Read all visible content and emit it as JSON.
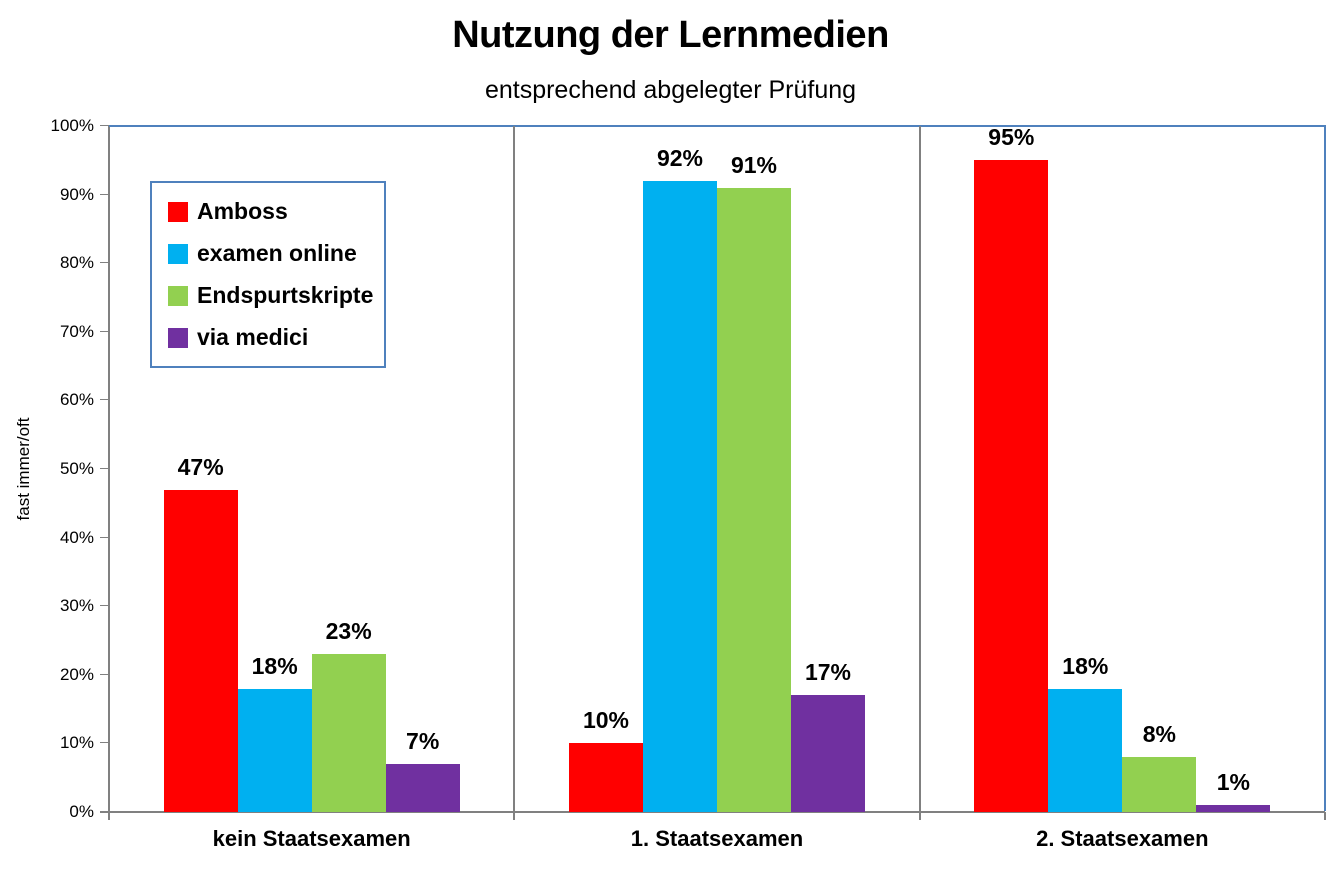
{
  "chart": {
    "title": "Nutzung der Lernmedien",
    "subtitle": "entsprechend abgelegter Prüfung",
    "ylabel": "fast immer/oft"
  },
  "chart_data": {
    "type": "bar",
    "title": "Nutzung der Lernmedien",
    "subtitle": "entsprechend abgelegter Prüfung",
    "xlabel": "",
    "ylabel": "fast immer/oft",
    "categories": [
      "kein Staatsexamen",
      "1. Staatsexamen",
      "2. Staatsexamen"
    ],
    "series": [
      {
        "name": "Amboss",
        "color": "#FF0000",
        "values": [
          47,
          10,
          95
        ]
      },
      {
        "name": "examen online",
        "color": "#00B0F0",
        "values": [
          18,
          92,
          18
        ]
      },
      {
        "name": "Endspurtskripte",
        "color": "#92D050",
        "values": [
          23,
          91,
          8
        ]
      },
      {
        "name": "via medici",
        "color": "#7030A0",
        "values": [
          7,
          17,
          1
        ]
      }
    ],
    "data_labels": true,
    "data_label_format": "{value}%",
    "ylim": [
      0,
      100
    ],
    "y_tick_step": 10,
    "y_tick_labels": [
      "0%",
      "10%",
      "20%",
      "30%",
      "40%",
      "50%",
      "60%",
      "70%",
      "80%",
      "90%",
      "100%"
    ],
    "legend": {
      "position": "upper-left-inset",
      "border_color": "#4F81BD"
    },
    "grid": "vertical-category-separators-only",
    "axis_color": "#808080",
    "plot_border_color": "#4F81BD"
  }
}
